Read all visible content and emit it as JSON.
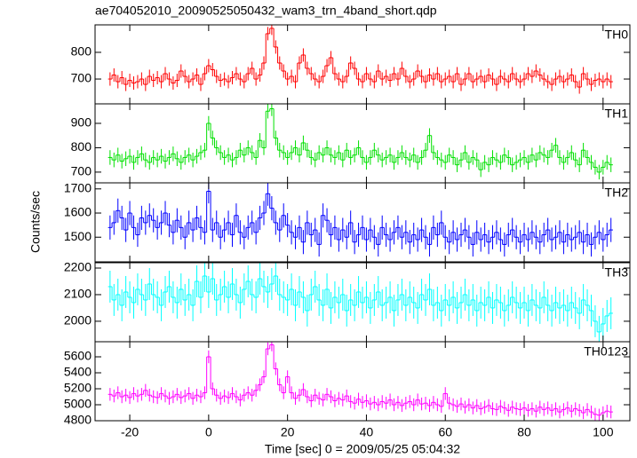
{
  "chart_data": {
    "type": "step",
    "title": "ae704052010_20090525050432_wam3_trn_4band_short.qdp",
    "xlabel": "Time [sec] 0 = 2009/05/25 05:04:32",
    "ylabel": "Counts/sec",
    "xlim": [
      -28.8,
      106.8
    ],
    "xticks": [
      -20,
      0,
      20,
      40,
      60,
      80,
      100
    ],
    "x": [
      -25,
      -24,
      -23,
      -22,
      -21,
      -20,
      -19,
      -18,
      -17,
      -16,
      -15,
      -14,
      -13,
      -12,
      -11,
      -10,
      -9,
      -8,
      -7,
      -6,
      -5,
      -4,
      -3,
      -2,
      -1,
      0,
      1,
      2,
      3,
      4,
      5,
      6,
      7,
      8,
      9,
      10,
      11,
      12,
      13,
      14,
      15,
      16,
      17,
      18,
      19,
      20,
      21,
      22,
      23,
      24,
      25,
      26,
      27,
      28,
      29,
      30,
      31,
      32,
      33,
      34,
      35,
      36,
      37,
      38,
      39,
      40,
      41,
      42,
      43,
      44,
      45,
      46,
      47,
      48,
      49,
      50,
      51,
      52,
      53,
      54,
      55,
      56,
      57,
      58,
      59,
      60,
      61,
      62,
      63,
      64,
      65,
      66,
      67,
      68,
      69,
      70,
      71,
      72,
      73,
      74,
      75,
      76,
      77,
      78,
      79,
      80,
      81,
      82,
      83,
      84,
      85,
      86,
      87,
      88,
      89,
      90,
      91,
      92,
      93,
      94,
      95,
      96,
      97,
      98,
      99,
      100,
      101,
      102
    ],
    "series": [
      {
        "name": "TH0",
        "color": "#ff0000",
        "yerr": 25,
        "ylim": [
          607,
          903
        ],
        "yticks": [
          700,
          800
        ],
        "values": [
          700,
          715,
          690,
          705,
          680,
          695,
          685,
          690,
          700,
          680,
          710,
          695,
          705,
          690,
          720,
          700,
          685,
          695,
          730,
          710,
          690,
          700,
          715,
          680,
          720,
          750,
          735,
          710,
          695,
          700,
          690,
          705,
          720,
          700,
          690,
          720,
          740,
          700,
          715,
          760,
          870,
          890,
          820,
          760,
          730,
          700,
          710,
          690,
          760,
          790,
          740,
          720,
          700,
          690,
          710,
          750,
          780,
          720,
          700,
          690,
          710,
          760,
          740,
          700,
          690,
          720,
          700,
          690,
          730,
          700,
          710,
          695,
          720,
          700,
          740,
          710,
          690,
          700,
          730,
          710,
          690,
          715,
          700,
          720,
          690,
          700,
          710,
          690,
          720,
          680,
          700,
          720,
          690,
          700,
          710,
          690,
          715,
          700,
          680,
          710,
          700,
          690,
          720,
          700,
          690,
          700,
          720,
          710,
          730,
          715,
          700,
          690,
          680,
          700,
          710,
          690,
          700,
          715,
          690,
          670,
          720,
          700,
          680,
          695,
          700,
          690,
          700,
          690
        ]
      },
      {
        "name": "TH1",
        "color": "#00e000",
        "yerr": 30,
        "ylim": [
          656,
          980
        ],
        "yticks": [
          700,
          800,
          900
        ],
        "values": [
          760,
          750,
          770,
          745,
          755,
          765,
          740,
          760,
          775,
          750,
          740,
          760,
          750,
          765,
          745,
          760,
          775,
          755,
          740,
          760,
          770,
          750,
          765,
          780,
          790,
          900,
          840,
          800,
          780,
          760,
          770,
          750,
          760,
          790,
          770,
          800,
          780,
          760,
          830,
          800,
          950,
          960,
          840,
          790,
          780,
          760,
          780,
          800,
          770,
          820,
          790,
          760,
          750,
          780,
          770,
          800,
          770,
          760,
          780,
          750,
          790,
          760,
          770,
          800,
          760,
          740,
          760,
          790,
          770,
          750,
          760,
          770,
          740,
          760,
          780,
          760,
          750,
          770,
          740,
          760,
          790,
          850,
          780,
          760,
          750,
          740,
          770,
          760,
          730,
          750,
          780,
          740,
          760,
          750,
          710,
          740,
          730,
          760,
          750,
          740,
          770,
          760,
          730,
          740,
          750,
          760,
          740,
          770,
          750,
          780,
          770,
          760,
          790,
          810,
          760,
          740,
          760,
          780,
          750,
          730,
          790,
          760,
          740,
          720,
          700,
          720,
          740,
          730
        ]
      },
      {
        "name": "TH2",
        "color": "#0000ff",
        "yerr": 50,
        "ylim": [
          1398,
          1725
        ],
        "yticks": [
          1500,
          1600,
          1700
        ],
        "values": [
          1540,
          1560,
          1610,
          1580,
          1530,
          1600,
          1540,
          1510,
          1580,
          1560,
          1590,
          1570,
          1540,
          1560,
          1600,
          1550,
          1520,
          1570,
          1540,
          1500,
          1560,
          1530,
          1580,
          1540,
          1520,
          1690,
          1530,
          1560,
          1500,
          1530,
          1560,
          1510,
          1590,
          1520,
          1500,
          1540,
          1560,
          1520,
          1580,
          1600,
          1680,
          1620,
          1560,
          1530,
          1590,
          1550,
          1520,
          1500,
          1540,
          1480,
          1560,
          1510,
          1530,
          1470,
          1590,
          1570,
          1510,
          1540,
          1490,
          1530,
          1500,
          1560,
          1480,
          1510,
          1540,
          1490,
          1530,
          1500,
          1470,
          1540,
          1510,
          1490,
          1520,
          1540,
          1500,
          1520,
          1480,
          1510,
          1490,
          1530,
          1500,
          1470,
          1540,
          1510,
          1560,
          1500,
          1480,
          1520,
          1490,
          1510,
          1530,
          1500,
          1470,
          1520,
          1490,
          1510,
          1480,
          1500,
          1520,
          1490,
          1470,
          1510,
          1530,
          1500,
          1480,
          1510,
          1490,
          1520,
          1500,
          1480,
          1510,
          1530,
          1490,
          1500,
          1520,
          1480,
          1510,
          1490,
          1500,
          1520,
          1480,
          1510,
          1470,
          1500,
          1520,
          1490,
          1510,
          1530
        ]
      },
      {
        "name": "TH3",
        "color": "#00ffff",
        "yerr": 60,
        "ylim": [
          1923,
          2220
        ],
        "yticks": [
          2000,
          2100,
          2200
        ],
        "values": [
          2130,
          2080,
          2100,
          2060,
          2110,
          2090,
          2070,
          2120,
          2100,
          2080,
          2140,
          2100,
          2090,
          2060,
          2110,
          2130,
          2090,
          2070,
          2120,
          2080,
          2100,
          2060,
          2150,
          2090,
          2170,
          2110,
          2160,
          2080,
          2100,
          2130,
          2090,
          2140,
          2100,
          2070,
          2120,
          2150,
          2100,
          2090,
          2160,
          2130,
          2110,
          2140,
          2170,
          2100,
          2090,
          2080,
          2120,
          2060,
          2110,
          2090,
          2040,
          2100,
          2130,
          2080,
          2060,
          2120,
          2050,
          2090,
          2070,
          2100,
          2040,
          2080,
          2060,
          2110,
          2070,
          2090,
          2050,
          2080,
          2110,
          2060,
          2070,
          2090,
          2040,
          2080,
          2100,
          2060,
          2090,
          2070,
          2050,
          2100,
          2080,
          2120,
          2060,
          2070,
          2040,
          2080,
          2060,
          2090,
          2050,
          2070,
          2100,
          2060,
          2080,
          2040,
          2070,
          2060,
          2090,
          2050,
          2080,
          2070,
          2040,
          2060,
          2090,
          2070,
          2050,
          2070,
          2040,
          2080,
          2060,
          2050,
          2090,
          2060,
          2040,
          2070,
          2050,
          2060,
          2040,
          2070,
          2050,
          2030,
          2080,
          2060,
          2040,
          2000,
          1960,
          1990,
          2020,
          2030
        ]
      },
      {
        "name": "TH0123",
        "color": "#ff00ff",
        "yerr": 80,
        "ylim": [
          4800,
          5789
        ],
        "yticks": [
          4800,
          5000,
          5200,
          5400,
          5600
        ],
        "values": [
          5130,
          5110,
          5150,
          5100,
          5120,
          5090,
          5140,
          5110,
          5130,
          5180,
          5120,
          5100,
          5090,
          5140,
          5110,
          5080,
          5100,
          5130,
          5090,
          5110,
          5140,
          5080,
          5120,
          5100,
          5150,
          5600,
          5200,
          5120,
          5080,
          5110,
          5090,
          5140,
          5100,
          5060,
          5120,
          5150,
          5120,
          5180,
          5250,
          5350,
          5700,
          5750,
          5450,
          5250,
          5150,
          5350,
          5150,
          5080,
          5120,
          5190,
          5100,
          5050,
          5120,
          5080,
          5060,
          5130,
          5100,
          5050,
          5080,
          5060,
          5110,
          5040,
          5020,
          5070,
          5030,
          5050,
          5010,
          5030,
          5000,
          5040,
          5020,
          5060,
          5000,
          5030,
          4990,
          5020,
          5040,
          5000,
          5060,
          5010,
          5020,
          4990,
          5030,
          5000,
          4980,
          5140,
          5020,
          5000,
          4980,
          5010,
          4970,
          5000,
          4960,
          4990,
          4950,
          4970,
          4990,
          4950,
          4940,
          4980,
          4960,
          4930,
          4970,
          4950,
          4940,
          4960,
          4930,
          4950,
          4920,
          4970,
          4940,
          4960,
          4930,
          4950,
          4910,
          4940,
          4960,
          4920,
          4950,
          4930,
          4900,
          4940,
          4910,
          4880,
          4870,
          4900,
          4920,
          4910
        ]
      }
    ]
  }
}
